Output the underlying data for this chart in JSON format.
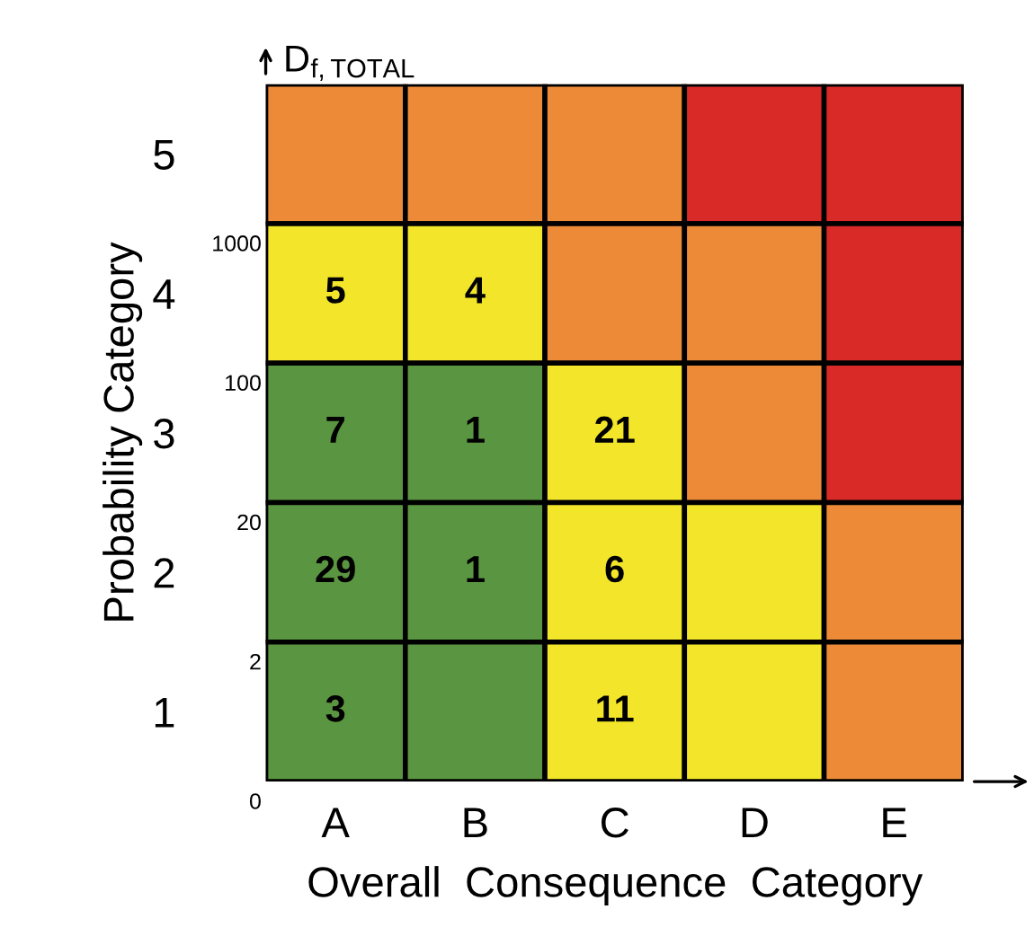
{
  "chart_data": {
    "type": "heatmap",
    "xlabel": "Overall  Consequence  Category",
    "ylabel": "Probability Category",
    "y2label": "D$_{f,TOTAL}$",
    "categories": [
      "A",
      "B",
      "C",
      "D",
      "E"
    ],
    "y_categories": [
      "5",
      "4",
      "3",
      "2",
      "1"
    ],
    "cells": [
      [
        null,
        null,
        null,
        null,
        null
      ],
      [
        5,
        4,
        null,
        null,
        null
      ],
      [
        7,
        1,
        21,
        null,
        null
      ],
      [
        29,
        1,
        6,
        null,
        null
      ],
      [
        3,
        null,
        11,
        null,
        null
      ]
    ],
    "colors": [
      [
        "#ec8a38",
        "#ec8a38",
        "#ec8a38",
        "#d92a28",
        "#d92a28"
      ],
      [
        "#f2e52a",
        "#f2e52a",
        "#ec8a38",
        "#ec8a38",
        "#d92a28"
      ],
      [
        "#5a9641",
        "#5a9641",
        "#f2e52a",
        "#ec8a38",
        "#d92a28"
      ],
      [
        "#5a9641",
        "#5a9641",
        "#f2e52a",
        "#f2e52a",
        "#ec8a38"
      ],
      [
        "#5a9641",
        "#5a9641",
        "#f2e52a",
        "#f2e52a",
        "#ec8a38"
      ]
    ],
    "annotations": [
      "0",
      "2",
      "20",
      "100",
      "1000"
    ],
    "data_labels": true
  }
}
